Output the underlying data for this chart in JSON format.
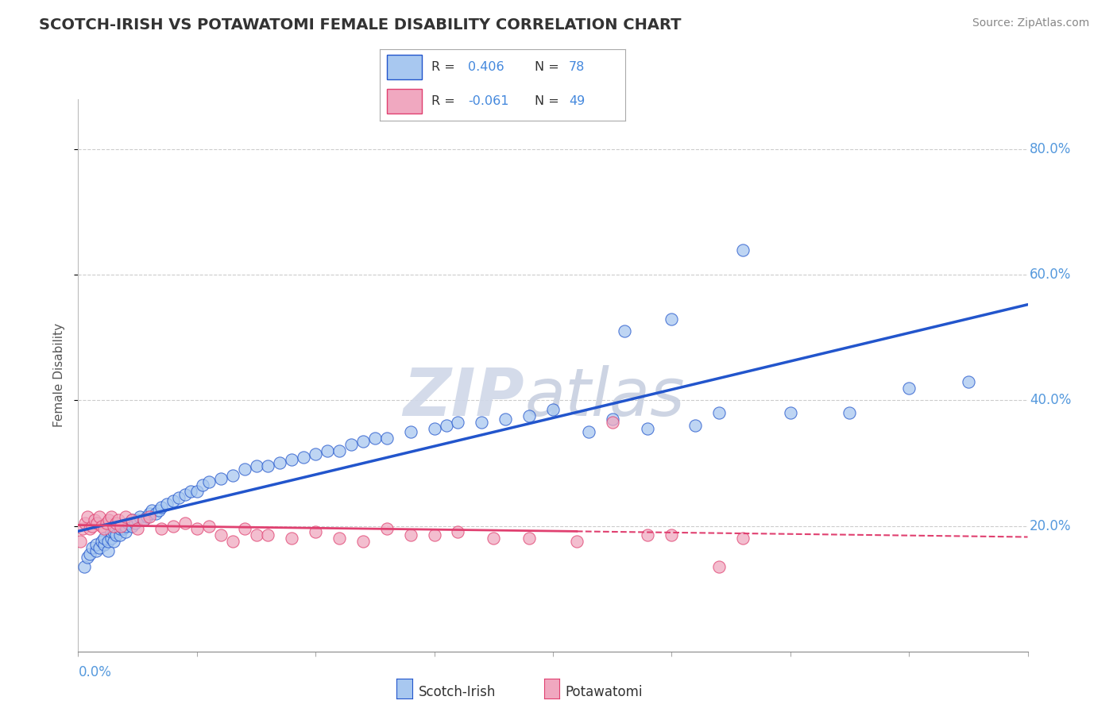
{
  "title": "SCOTCH-IRISH VS POTAWATOMI FEMALE DISABILITY CORRELATION CHART",
  "source": "Source: ZipAtlas.com",
  "ylabel": "Female Disability",
  "xlim": [
    0.0,
    0.8
  ],
  "ylim": [
    0.0,
    0.88
  ],
  "color_scotch": "#a8c8f0",
  "color_potawatomi": "#f0a8c0",
  "color_line_scotch": "#2255cc",
  "color_line_potawatomi": "#e04070",
  "background_color": "#ffffff",
  "grid_color": "#cccccc",
  "scotch_x": [
    0.005,
    0.008,
    0.01,
    0.012,
    0.015,
    0.015,
    0.018,
    0.02,
    0.022,
    0.022,
    0.025,
    0.025,
    0.028,
    0.028,
    0.03,
    0.03,
    0.032,
    0.035,
    0.035,
    0.038,
    0.04,
    0.04,
    0.042,
    0.045,
    0.045,
    0.048,
    0.05,
    0.052,
    0.055,
    0.058,
    0.06,
    0.062,
    0.065,
    0.068,
    0.07,
    0.075,
    0.08,
    0.085,
    0.09,
    0.095,
    0.1,
    0.105,
    0.11,
    0.12,
    0.13,
    0.14,
    0.15,
    0.16,
    0.17,
    0.18,
    0.19,
    0.2,
    0.21,
    0.22,
    0.23,
    0.24,
    0.25,
    0.26,
    0.28,
    0.3,
    0.31,
    0.32,
    0.34,
    0.36,
    0.38,
    0.4,
    0.43,
    0.45,
    0.46,
    0.48,
    0.5,
    0.52,
    0.54,
    0.56,
    0.6,
    0.65,
    0.7,
    0.75
  ],
  "scotch_y": [
    0.135,
    0.15,
    0.155,
    0.165,
    0.16,
    0.17,
    0.165,
    0.175,
    0.17,
    0.18,
    0.16,
    0.175,
    0.18,
    0.19,
    0.175,
    0.19,
    0.185,
    0.185,
    0.195,
    0.195,
    0.19,
    0.2,
    0.205,
    0.2,
    0.21,
    0.205,
    0.21,
    0.215,
    0.21,
    0.215,
    0.22,
    0.225,
    0.22,
    0.225,
    0.23,
    0.235,
    0.24,
    0.245,
    0.25,
    0.255,
    0.255,
    0.265,
    0.27,
    0.275,
    0.28,
    0.29,
    0.295,
    0.295,
    0.3,
    0.305,
    0.31,
    0.315,
    0.32,
    0.32,
    0.33,
    0.335,
    0.34,
    0.34,
    0.35,
    0.355,
    0.36,
    0.365,
    0.365,
    0.37,
    0.375,
    0.385,
    0.35,
    0.37,
    0.51,
    0.355,
    0.53,
    0.36,
    0.38,
    0.64,
    0.38,
    0.38,
    0.42,
    0.43
  ],
  "potawatomi_x": [
    0.002,
    0.004,
    0.006,
    0.008,
    0.01,
    0.012,
    0.014,
    0.016,
    0.018,
    0.02,
    0.022,
    0.024,
    0.026,
    0.028,
    0.03,
    0.032,
    0.034,
    0.036,
    0.04,
    0.045,
    0.05,
    0.055,
    0.06,
    0.07,
    0.08,
    0.09,
    0.1,
    0.11,
    0.12,
    0.13,
    0.14,
    0.15,
    0.16,
    0.18,
    0.2,
    0.22,
    0.24,
    0.26,
    0.28,
    0.3,
    0.32,
    0.35,
    0.38,
    0.42,
    0.45,
    0.48,
    0.5,
    0.54,
    0.56
  ],
  "potawatomi_y": [
    0.175,
    0.195,
    0.205,
    0.215,
    0.195,
    0.2,
    0.21,
    0.205,
    0.215,
    0.2,
    0.195,
    0.205,
    0.21,
    0.215,
    0.2,
    0.205,
    0.21,
    0.2,
    0.215,
    0.21,
    0.195,
    0.21,
    0.215,
    0.195,
    0.2,
    0.205,
    0.195,
    0.2,
    0.185,
    0.175,
    0.195,
    0.185,
    0.185,
    0.18,
    0.19,
    0.18,
    0.175,
    0.195,
    0.185,
    0.185,
    0.19,
    0.18,
    0.18,
    0.175,
    0.365,
    0.185,
    0.185,
    0.135,
    0.18
  ]
}
